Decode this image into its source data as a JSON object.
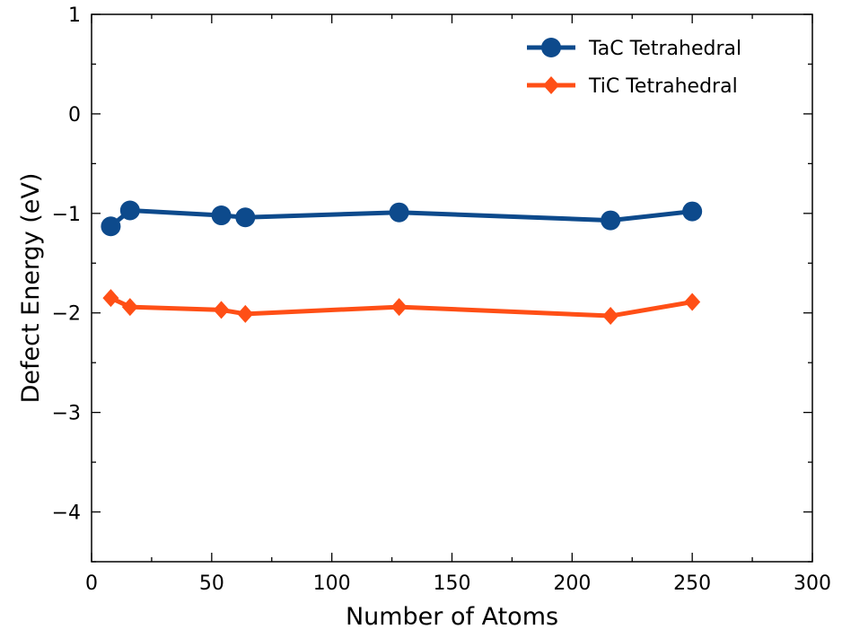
{
  "chart_data": {
    "type": "line",
    "xlabel": "Number of Atoms",
    "ylabel": "Defect Energy (eV)",
    "xlim": [
      0,
      300
    ],
    "ylim": [
      -4.5,
      1
    ],
    "xticks": [
      0,
      50,
      100,
      150,
      200,
      250,
      300
    ],
    "xtick_labels": [
      "0",
      "50",
      "100",
      "150",
      "200",
      "250",
      "300"
    ],
    "yticks": [
      1,
      0,
      -1,
      -2,
      -3,
      -4
    ],
    "ytick_labels": [
      "1",
      "0",
      "−1",
      "−2",
      "−3",
      "−4"
    ],
    "grid": false,
    "legend_position": "top-right",
    "series": [
      {
        "name": "TaC Tetrahedral",
        "color": "#0d4a8c",
        "marker": "circle",
        "x": [
          8,
          16,
          54,
          64,
          128,
          216,
          250
        ],
        "y": [
          -1.13,
          -0.97,
          -1.02,
          -1.04,
          -0.99,
          -1.07,
          -0.98
        ]
      },
      {
        "name": "TiC Tetrahedral",
        "color": "#ff4f16",
        "marker": "diamond",
        "x": [
          8,
          16,
          54,
          64,
          128,
          216,
          250
        ],
        "y": [
          -1.85,
          -1.94,
          -1.97,
          -2.01,
          -1.94,
          -2.03,
          -1.89
        ]
      }
    ]
  }
}
